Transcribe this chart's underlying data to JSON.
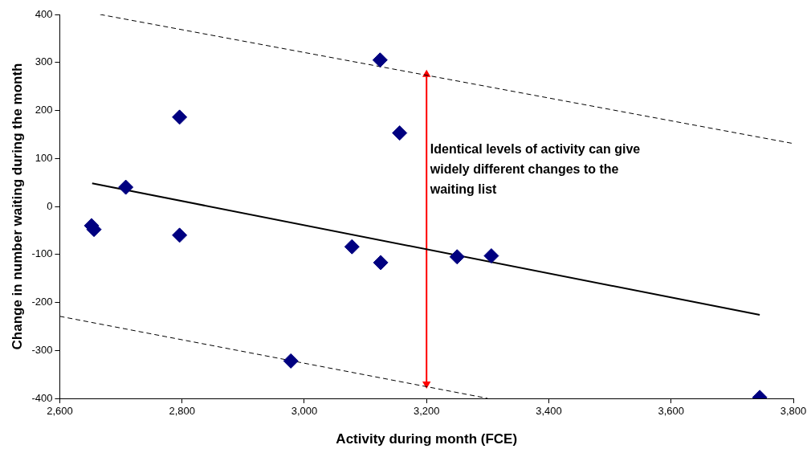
{
  "chart_data": {
    "type": "scatter",
    "xlabel": "Activity during month (FCE)",
    "ylabel": "Change in number waiting during the month",
    "xlim": [
      2600,
      3800
    ],
    "xticks": [
      {
        "value": 2600,
        "label": "2,600"
      },
      {
        "value": 2800,
        "label": "2,800"
      },
      {
        "value": 3000,
        "label": "3,000"
      },
      {
        "value": 3200,
        "label": "3,200"
      },
      {
        "value": 3400,
        "label": "3,400"
      },
      {
        "value": 3600,
        "label": "3,600"
      },
      {
        "value": 3800,
        "label": "3,800"
      }
    ],
    "ylim": [
      -400,
      400
    ],
    "yticks": [
      -400,
      -300,
      -200,
      -100,
      0,
      100,
      200,
      300,
      400
    ],
    "grid": false,
    "legend": false,
    "marker": "diamond",
    "series": [
      {
        "type": "scatter",
        "color": "#000080",
        "x": [
          2652,
          2656,
          2708,
          2796,
          2796,
          2978,
          3078,
          3124,
          3125,
          3156,
          3250,
          3306,
          3745
        ],
        "values": [
          -40,
          -48,
          40,
          186,
          -60,
          -322,
          -84,
          305,
          -117,
          153,
          -105,
          -103,
          -398
        ]
      },
      {
        "type": "line",
        "color": "#000000",
        "marker": "none",
        "line_style": "solid",
        "x": [
          2653,
          3745
        ],
        "values": [
          48,
          -226
        ]
      },
      {
        "type": "line",
        "color": "#000000",
        "marker": "none",
        "line_style": "dashed",
        "x": [
          2666,
          3800
        ],
        "values": [
          400,
          131
        ]
      },
      {
        "type": "line",
        "color": "#000000",
        "marker": "none",
        "line_style": "dashed",
        "x": [
          2600,
          3300
        ],
        "values": [
          -229,
          -400
        ]
      },
      {
        "type": "line",
        "color": "#ff0000",
        "marker": "triangle",
        "line_style": "solid",
        "x": [
          3200,
          3200
        ],
        "values": [
          -370,
          275
        ]
      }
    ],
    "annotations": [
      "Identical levels of activity can give widely different changes to the waiting list"
    ]
  }
}
